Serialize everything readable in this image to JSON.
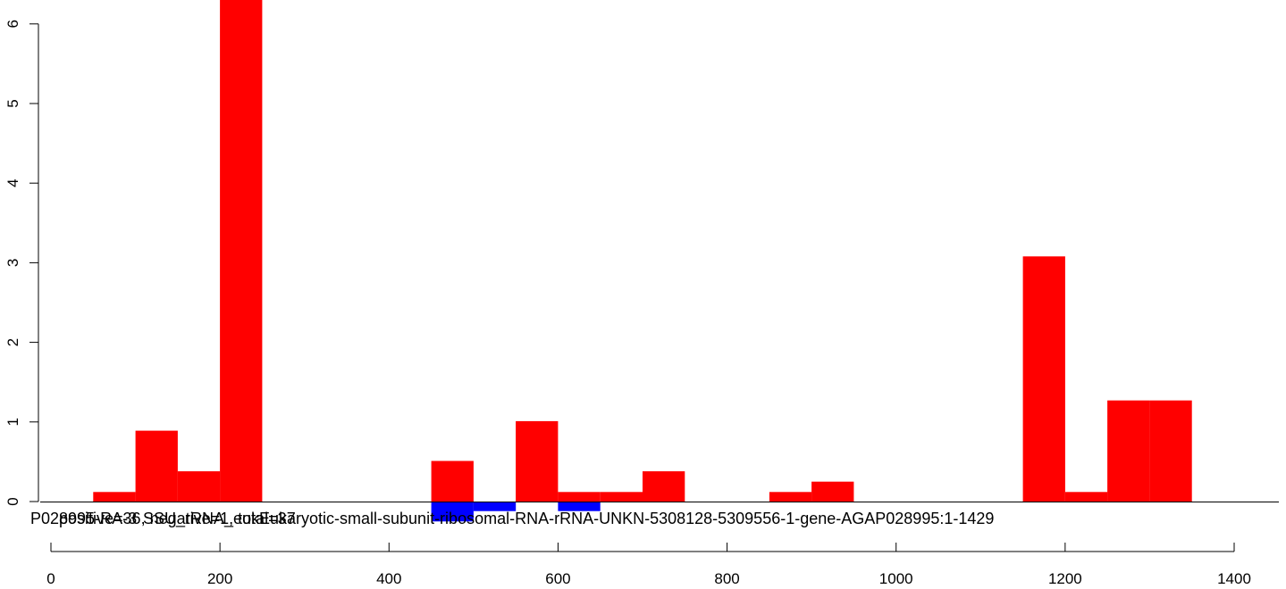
{
  "chart_data": {
    "type": "bar",
    "colors": {
      "positive": "#ff0000",
      "negative": "#0000ff",
      "axis": "#000000"
    },
    "xlim": [
      0,
      1429
    ],
    "ylim": [
      -0.25,
      6.25
    ],
    "x_ticks": [
      0,
      200,
      400,
      600,
      800,
      1000,
      1200,
      1400
    ],
    "y_ticks": [
      0,
      1,
      2,
      3,
      4,
      5,
      6
    ],
    "bin_width": 50,
    "series": [
      {
        "sign": "positive",
        "bins": [
          {
            "x0": 50,
            "x1": 100,
            "value": 0.12
          },
          {
            "x0": 100,
            "x1": 150,
            "value": 0.89
          },
          {
            "x0": 150,
            "x1": 200,
            "value": 0.38
          },
          {
            "x0": 200,
            "x1": 250,
            "value": 6.5
          },
          {
            "x0": 450,
            "x1": 500,
            "value": 0.51
          },
          {
            "x0": 550,
            "x1": 600,
            "value": 1.01
          },
          {
            "x0": 600,
            "x1": 650,
            "value": 0.12
          },
          {
            "x0": 650,
            "x1": 700,
            "value": 0.12
          },
          {
            "x0": 700,
            "x1": 750,
            "value": 0.38
          },
          {
            "x0": 850,
            "x1": 900,
            "value": 0.12
          },
          {
            "x0": 900,
            "x1": 950,
            "value": 0.25
          },
          {
            "x0": 1150,
            "x1": 1200,
            "value": 3.08
          },
          {
            "x0": 1200,
            "x1": 1250,
            "value": 0.12
          },
          {
            "x0": 1250,
            "x1": 1300,
            "value": 1.27
          },
          {
            "x0": 1300,
            "x1": 1350,
            "value": 1.27
          }
        ]
      },
      {
        "sign": "negative",
        "bins": [
          {
            "x0": 450,
            "x1": 500,
            "value": -0.25
          },
          {
            "x0": 500,
            "x1": 550,
            "value": -0.12
          },
          {
            "x0": 600,
            "x1": 650,
            "value": -0.12
          }
        ]
      }
    ],
    "overlay_labels": [
      "P028995-RA-3",
      "positive=36, negative=1, total=37",
      "SSU_rRNA_euk",
      "Eukaryotic-small-subunit-ribosomal-RNA-rRNA-UNKN-5308128-5309556-1-gene-AGAP028995:1-1429"
    ]
  }
}
